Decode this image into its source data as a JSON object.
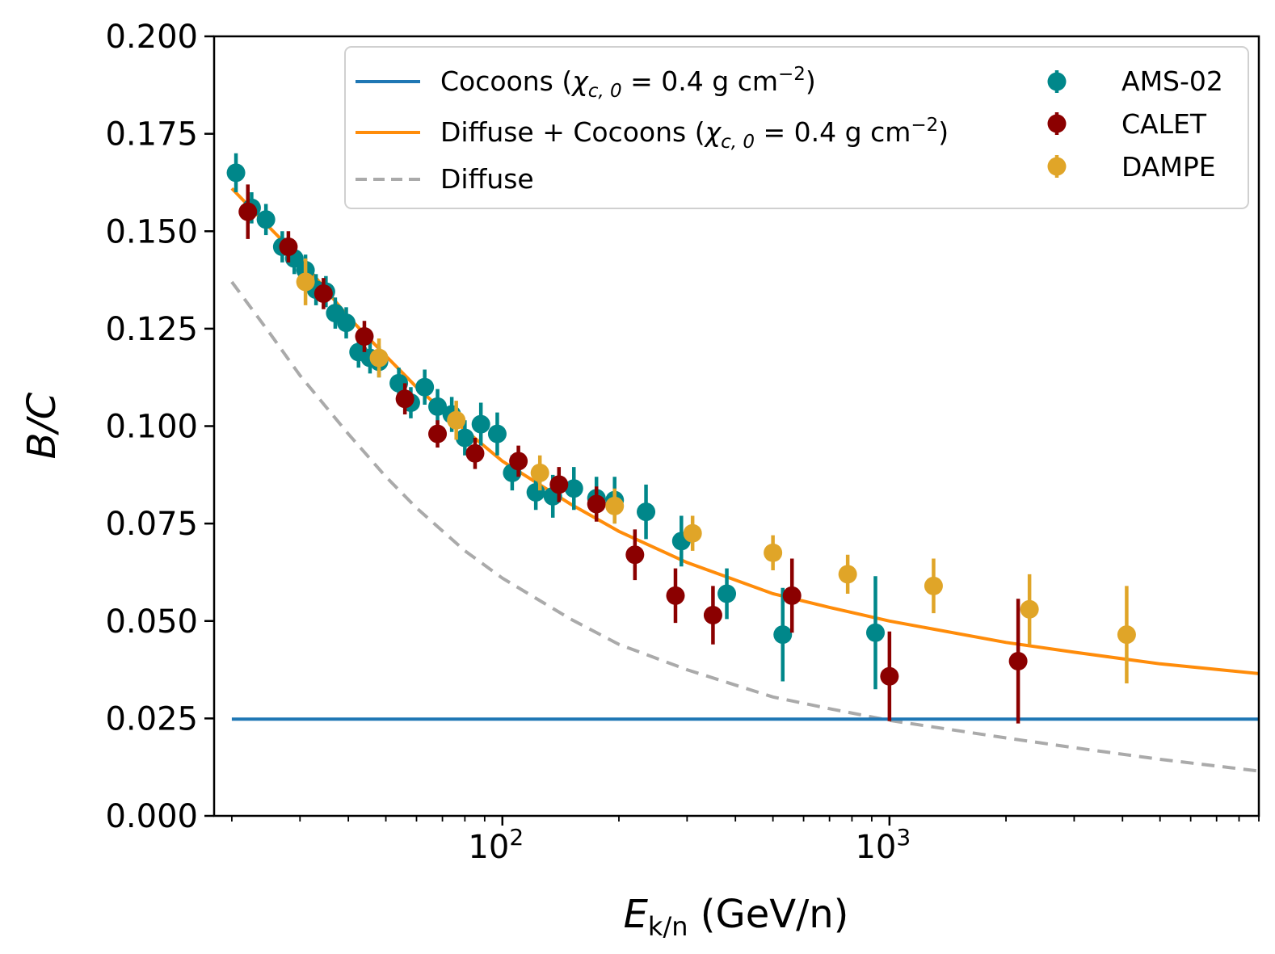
{
  "chart_data": {
    "type": "scatter",
    "xscale": "log",
    "xlim": [
      18,
      9000
    ],
    "ylim": [
      0,
      0.2
    ],
    "xlabel": {
      "main": "E",
      "sub": "k/n",
      "unit": " (GeV/n)"
    },
    "ylabel": "B/C",
    "yticks": [
      0,
      0.025,
      0.05,
      0.075,
      0.1,
      0.125,
      0.15,
      0.175,
      0.2
    ],
    "ytick_labels": [
      "0.000",
      "0.025",
      "0.050",
      "0.075",
      "0.100",
      "0.125",
      "0.150",
      "0.175",
      "0.200"
    ],
    "xticks": [
      {
        "value": 100,
        "base": "10",
        "exp": "2"
      },
      {
        "value": 1000,
        "base": "10",
        "exp": "3"
      }
    ],
    "grid": false,
    "legend_position": "top-right",
    "lines": [
      {
        "name": "Cocoons (χc,0 = 0.4 g cm−2)",
        "legend": {
          "pre": "Cocoons (",
          "chi": "χ",
          "chi_sub": "c, 0",
          "mid": " = 0.4 g cm",
          "sup": "−2",
          "post": ")"
        },
        "color": "#1f77b4",
        "style": "solid",
        "points": [
          [
            20,
            0.0248
          ],
          [
            9000,
            0.0248
          ]
        ]
      },
      {
        "name": "Diffuse + Cocoons (χc,0 = 0.4 g cm−2)",
        "legend": {
          "pre": "Diffuse + Cocoons (",
          "chi": "χ",
          "chi_sub": "c, 0",
          "mid": " = 0.4 g cm",
          "sup": "−2",
          "post": ")"
        },
        "color": "#ff8c0a",
        "style": "solid",
        "points": [
          [
            20,
            0.161
          ],
          [
            25,
            0.151
          ],
          [
            30,
            0.143
          ],
          [
            40,
            0.128
          ],
          [
            50,
            0.118
          ],
          [
            60,
            0.11
          ],
          [
            80,
            0.099
          ],
          [
            100,
            0.091
          ],
          [
            150,
            0.08
          ],
          [
            200,
            0.073
          ],
          [
            300,
            0.065
          ],
          [
            500,
            0.057
          ],
          [
            700,
            0.0535
          ],
          [
            1000,
            0.05
          ],
          [
            2000,
            0.0445
          ],
          [
            3000,
            0.042
          ],
          [
            5000,
            0.039
          ],
          [
            9000,
            0.0365
          ]
        ]
      },
      {
        "name": "Diffuse",
        "legend": {
          "pre": "Diffuse"
        },
        "color": "#aaaaaa",
        "style": "dashed",
        "points": [
          [
            20,
            0.137
          ],
          [
            25,
            0.124
          ],
          [
            30,
            0.113
          ],
          [
            40,
            0.098
          ],
          [
            50,
            0.087
          ],
          [
            60,
            0.079
          ],
          [
            80,
            0.068
          ],
          [
            100,
            0.061
          ],
          [
            150,
            0.0505
          ],
          [
            200,
            0.044
          ],
          [
            300,
            0.0375
          ],
          [
            500,
            0.0305
          ],
          [
            700,
            0.0275
          ],
          [
            1000,
            0.0245
          ],
          [
            2000,
            0.02
          ],
          [
            3000,
            0.0175
          ],
          [
            5000,
            0.0145
          ],
          [
            9000,
            0.0115
          ]
        ]
      }
    ],
    "series": [
      {
        "name": "AMS-02",
        "color": "#00878a",
        "points": [
          [
            20.5,
            0.165,
            0.005
          ],
          [
            22.5,
            0.156,
            0.004
          ],
          [
            24.5,
            0.153,
            0.004
          ],
          [
            27,
            0.146,
            0.004
          ],
          [
            29,
            0.143,
            0.004
          ],
          [
            31,
            0.14,
            0.004
          ],
          [
            33,
            0.135,
            0.004
          ],
          [
            35,
            0.1345,
            0.004
          ],
          [
            37,
            0.129,
            0.004
          ],
          [
            39.5,
            0.1265,
            0.004
          ],
          [
            42.5,
            0.119,
            0.004
          ],
          [
            45.5,
            0.1175,
            0.004
          ],
          [
            48,
            0.1165,
            0.004
          ],
          [
            54,
            0.111,
            0.004
          ],
          [
            58,
            0.106,
            0.004
          ],
          [
            63,
            0.11,
            0.0045
          ],
          [
            68,
            0.105,
            0.0045
          ],
          [
            74,
            0.103,
            0.0045
          ],
          [
            80,
            0.097,
            0.0045
          ],
          [
            88,
            0.1005,
            0.0055
          ],
          [
            97,
            0.098,
            0.0055
          ],
          [
            106,
            0.088,
            0.0045
          ],
          [
            122,
            0.083,
            0.0045
          ],
          [
            135,
            0.082,
            0.0055
          ],
          [
            153,
            0.084,
            0.0055
          ],
          [
            175,
            0.0815,
            0.0055
          ],
          [
            195,
            0.081,
            0.006
          ],
          [
            235,
            0.078,
            0.007
          ],
          [
            290,
            0.0705,
            0.0065
          ],
          [
            380,
            0.057,
            0.0065
          ],
          [
            530,
            0.0465,
            0.012
          ],
          [
            920,
            0.047,
            0.0145
          ]
        ]
      },
      {
        "name": "CALET",
        "color": "#8b0000",
        "points": [
          [
            22,
            0.155,
            0.007
          ],
          [
            28,
            0.146,
            0.004
          ],
          [
            34.5,
            0.134,
            0.004
          ],
          [
            44,
            0.123,
            0.004
          ],
          [
            56,
            0.107,
            0.004
          ],
          [
            68,
            0.098,
            0.0035
          ],
          [
            85,
            0.093,
            0.004
          ],
          [
            110,
            0.091,
            0.004
          ],
          [
            140,
            0.085,
            0.0045
          ],
          [
            175,
            0.08,
            0.0045
          ],
          [
            220,
            0.067,
            0.0065
          ],
          [
            280,
            0.0565,
            0.007
          ],
          [
            350,
            0.0515,
            0.0075
          ],
          [
            560,
            0.0565,
            0.0095
          ],
          [
            1000,
            0.0358,
            0.0115
          ],
          [
            2150,
            0.0397,
            0.016
          ]
        ]
      },
      {
        "name": "DAMPE",
        "color": "#e0a528",
        "points": [
          [
            31,
            0.137,
            0.006
          ],
          [
            48,
            0.1175,
            0.005
          ],
          [
            76,
            0.1015,
            0.005
          ],
          [
            125,
            0.088,
            0.0045
          ],
          [
            195,
            0.0795,
            0.0045
          ],
          [
            310,
            0.0725,
            0.0045
          ],
          [
            500,
            0.0675,
            0.0045
          ],
          [
            780,
            0.062,
            0.005
          ],
          [
            1300,
            0.059,
            0.007
          ],
          [
            2300,
            0.053,
            0.009
          ],
          [
            4100,
            0.0465,
            0.0125
          ]
        ]
      }
    ]
  }
}
